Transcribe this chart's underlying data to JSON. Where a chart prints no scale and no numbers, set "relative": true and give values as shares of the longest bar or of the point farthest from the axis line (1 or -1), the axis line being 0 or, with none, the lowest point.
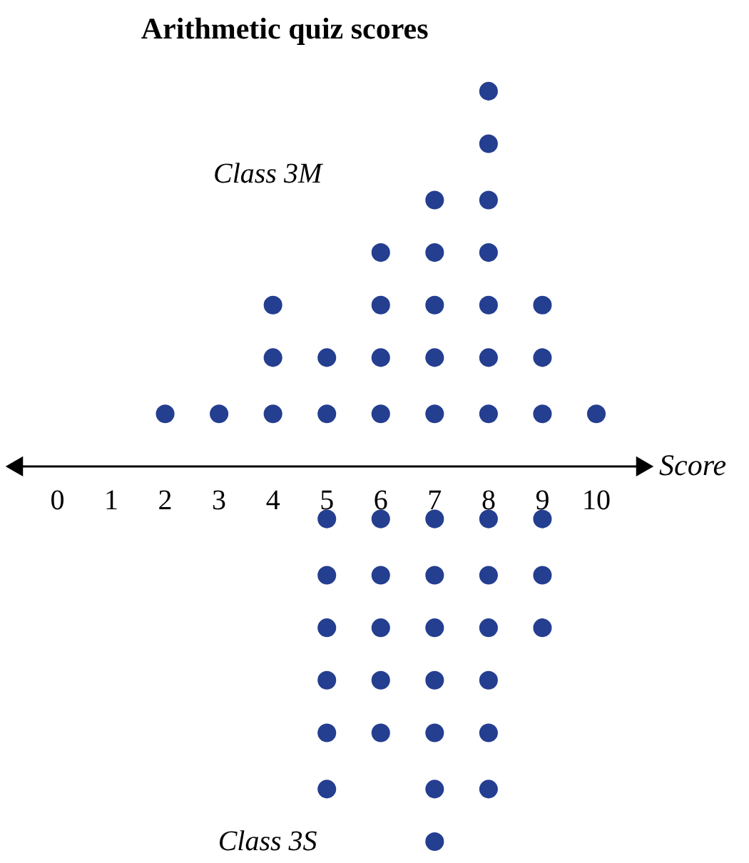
{
  "chart_data": {
    "type": "scatter",
    "title": "Arithmetic quiz scores",
    "xlabel": "Score",
    "relative": true,
    "xlim": [
      -0.8,
      10.9
    ],
    "xticks": [
      0,
      1,
      2,
      3,
      4,
      5,
      6,
      7,
      8,
      9,
      10
    ],
    "legend": false,
    "marker": "circle",
    "series": [
      {
        "name": "Class 3M",
        "color": "#243e90",
        "x": [
          2,
          3,
          4,
          4,
          4,
          5,
          5,
          6,
          6,
          6,
          6,
          7,
          7,
          7,
          7,
          7,
          8,
          8,
          8,
          8,
          8,
          8,
          8,
          9,
          9,
          9,
          10
        ],
        "values": [
          0.14,
          0.14,
          0.14,
          0.29,
          0.43,
          0.14,
          0.29,
          0.14,
          0.29,
          0.43,
          0.57,
          0.14,
          0.29,
          0.43,
          0.57,
          0.71,
          0.14,
          0.29,
          0.43,
          0.57,
          0.71,
          0.86,
          1,
          0.14,
          0.29,
          0.43,
          0.14
        ]
      },
      {
        "name": "Class 3S",
        "color": "#243e90",
        "x": [
          5,
          5,
          5,
          5,
          5,
          5,
          6,
          6,
          6,
          6,
          6,
          7,
          7,
          7,
          7,
          7,
          7,
          7,
          8,
          8,
          8,
          8,
          8,
          8,
          9,
          9,
          9
        ],
        "values": [
          -0.14,
          -0.29,
          -0.43,
          -0.57,
          -0.71,
          -0.86,
          -0.14,
          -0.29,
          -0.43,
          -0.57,
          -0.71,
          -0.14,
          -0.29,
          -0.43,
          -0.57,
          -0.71,
          -0.86,
          -1,
          -0.14,
          -0.29,
          -0.43,
          -0.57,
          -0.71,
          -0.86,
          -0.14,
          -0.29,
          -0.43
        ]
      }
    ]
  }
}
